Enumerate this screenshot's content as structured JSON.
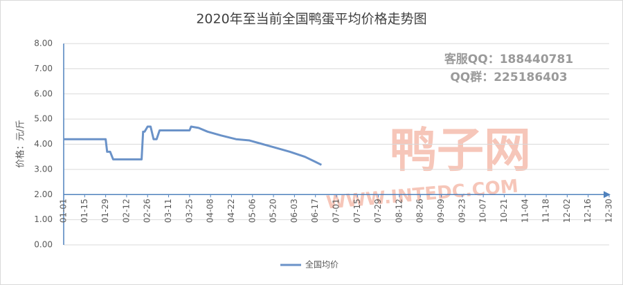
{
  "chart_data": {
    "type": "line",
    "title": "2020年至当前全国鸭蛋平均价格走势图",
    "y_label": "价格：元/斤",
    "annotations": [
      "客服QQ：188440781",
      "QQ群：225186403",
      "鸭子网",
      "WWW.INTEDC.COM"
    ],
    "x": [
      0,
      14,
      28,
      29,
      30,
      31,
      33,
      40,
      52,
      53,
      54,
      56,
      58,
      60,
      62,
      64,
      70,
      84,
      85,
      90,
      96,
      105,
      115,
      124,
      133,
      142,
      151,
      161,
      168,
      172
    ],
    "series": [
      {
        "name": "全国均价",
        "color": "#6a92c8",
        "values": [
          4.2,
          4.2,
          4.2,
          3.7,
          3.7,
          3.7,
          3.4,
          3.4,
          3.4,
          4.5,
          4.5,
          4.7,
          4.7,
          4.2,
          4.2,
          4.55,
          4.55,
          4.55,
          4.7,
          4.65,
          4.5,
          4.35,
          4.2,
          4.15,
          4.0,
          3.85,
          3.7,
          3.5,
          3.3,
          3.18
        ]
      }
    ],
    "xlim": [
      0,
      364
    ],
    "xticks": [
      {
        "value": 0,
        "label": "01-01"
      },
      {
        "value": 14,
        "label": "01-15"
      },
      {
        "value": 28,
        "label": "01-29"
      },
      {
        "value": 42,
        "label": "02-12"
      },
      {
        "value": 56,
        "label": "02-26"
      },
      {
        "value": 70,
        "label": "03-11"
      },
      {
        "value": 84,
        "label": "03-25"
      },
      {
        "value": 98,
        "label": "04-08"
      },
      {
        "value": 112,
        "label": "04-22"
      },
      {
        "value": 126,
        "label": "05-06"
      },
      {
        "value": 140,
        "label": "05-20"
      },
      {
        "value": 154,
        "label": "06-03"
      },
      {
        "value": 168,
        "label": "06-17"
      },
      {
        "value": 182,
        "label": "07-01"
      },
      {
        "value": 196,
        "label": "07-15"
      },
      {
        "value": 210,
        "label": "07-29"
      },
      {
        "value": 224,
        "label": "08-12"
      },
      {
        "value": 238,
        "label": "08-26"
      },
      {
        "value": 252,
        "label": "09-09"
      },
      {
        "value": 266,
        "label": "09-23"
      },
      {
        "value": 280,
        "label": "10-07"
      },
      {
        "value": 294,
        "label": "10-21"
      },
      {
        "value": 308,
        "label": "11-04"
      },
      {
        "value": 322,
        "label": "11-18"
      },
      {
        "value": 336,
        "label": "12-02"
      },
      {
        "value": 350,
        "label": "12-16"
      },
      {
        "value": 364,
        "label": "12-30"
      }
    ],
    "ylim": [
      0,
      8
    ],
    "yticks": [
      {
        "value": 0,
        "label": "0.00"
      },
      {
        "value": 1,
        "label": "1.00"
      },
      {
        "value": 2,
        "label": "2.00"
      },
      {
        "value": 3,
        "label": "3.00"
      },
      {
        "value": 4,
        "label": "4.00"
      },
      {
        "value": 5,
        "label": "5.00"
      },
      {
        "value": 6,
        "label": "6.00"
      },
      {
        "value": 7,
        "label": "7.00"
      },
      {
        "value": 8,
        "label": "8.00"
      }
    ],
    "x_axis_at": 2,
    "grid": true,
    "legend": "bottom"
  }
}
